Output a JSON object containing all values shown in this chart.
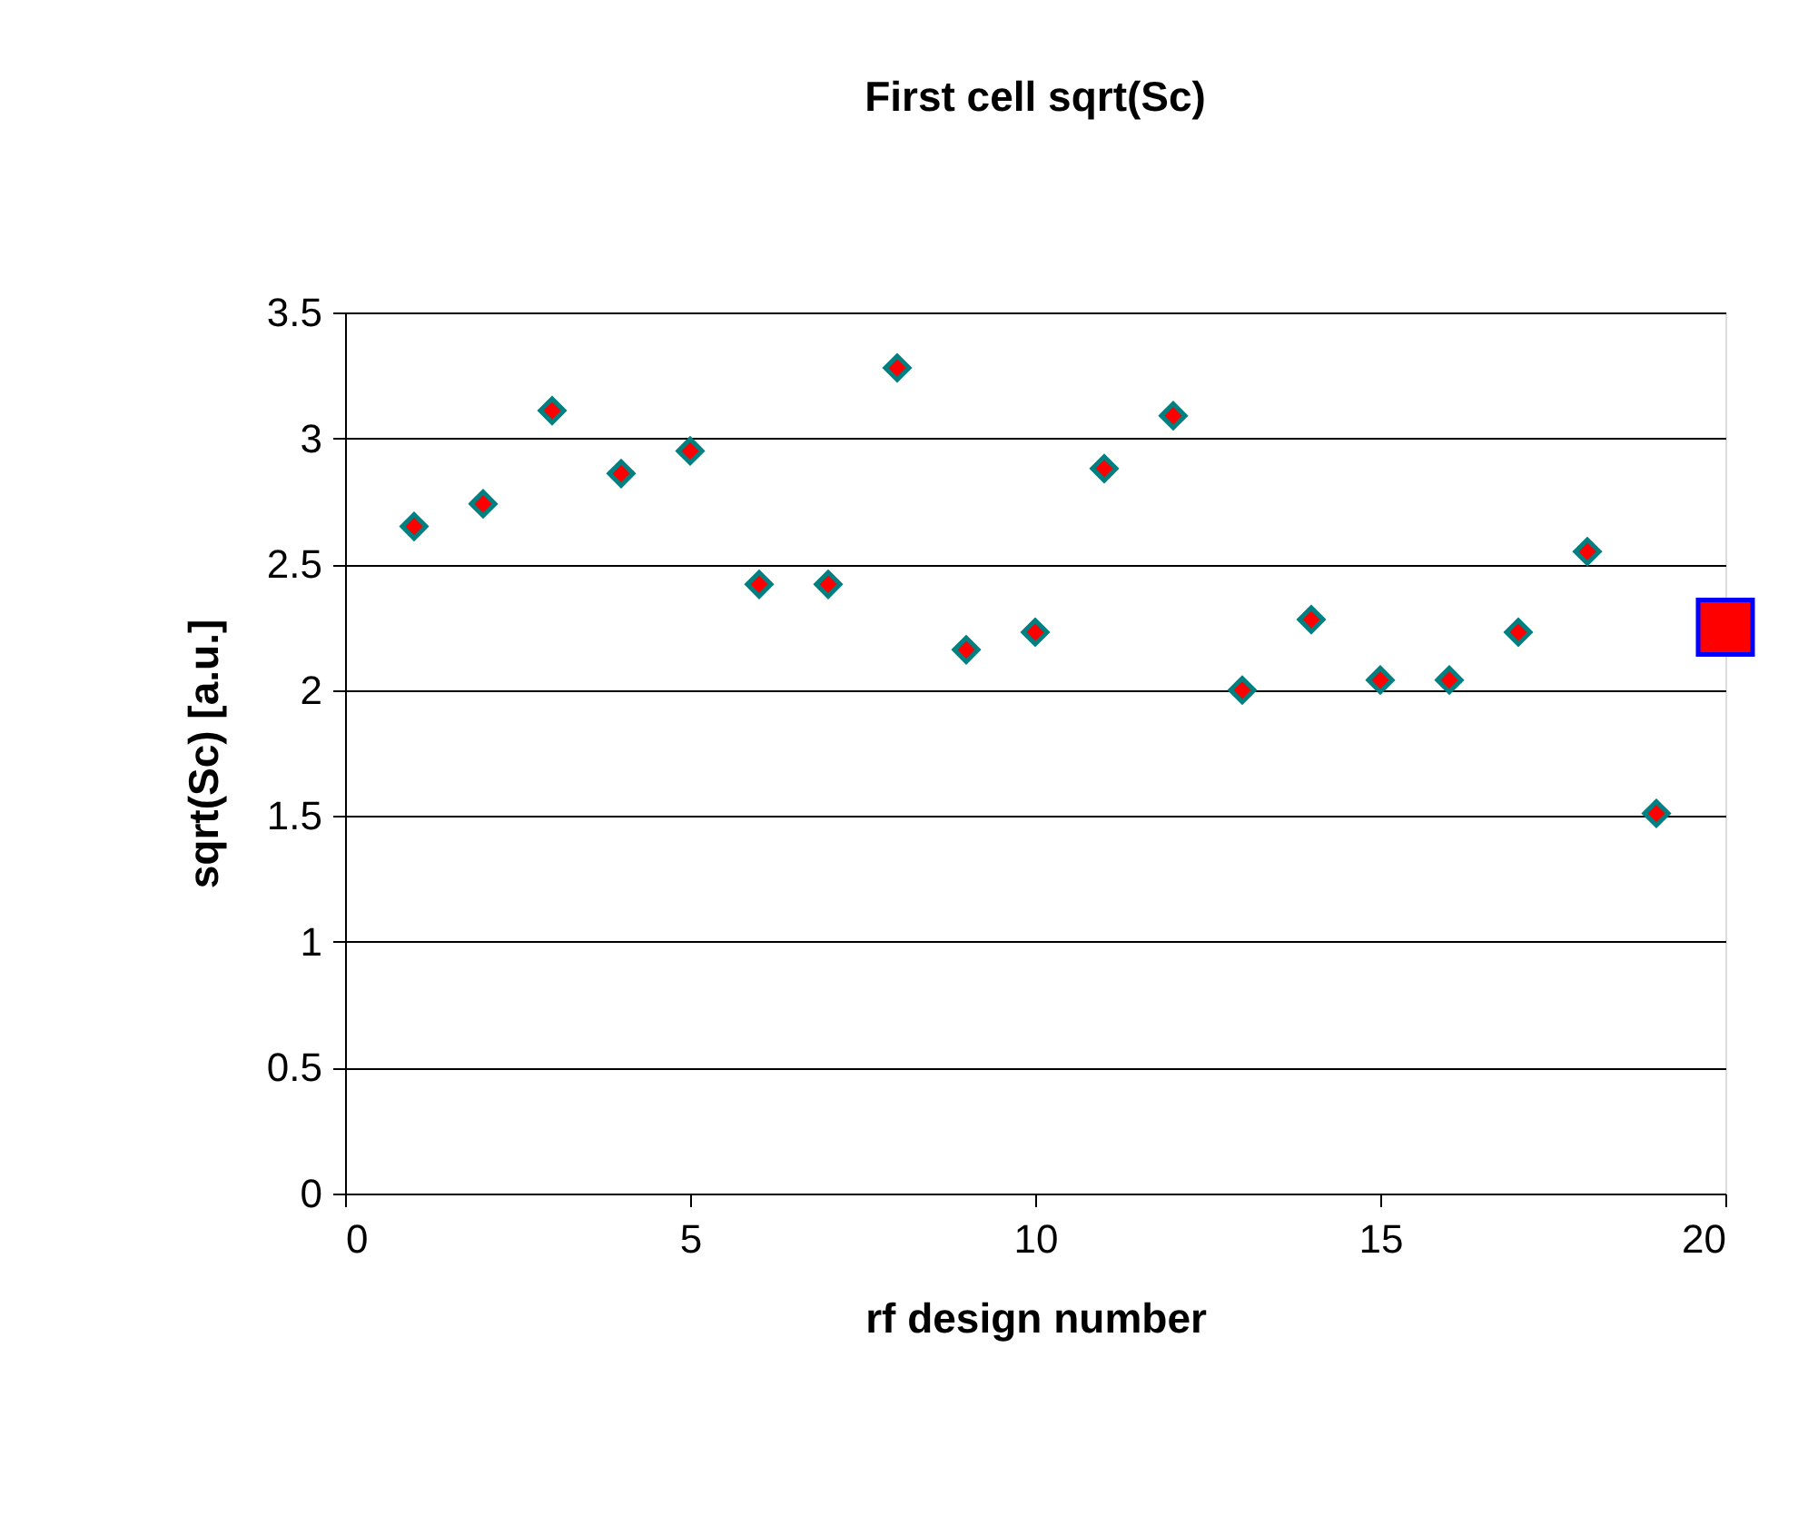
{
  "chart_data": {
    "type": "scatter",
    "title": "First cell sqrt(Sc)",
    "xlabel": "rf design number",
    "ylabel": "sqrt(Sc) [a.u.]",
    "xlim": [
      0,
      20
    ],
    "xticks": [
      0,
      5,
      10,
      15,
      20
    ],
    "ylim": [
      0,
      3.5
    ],
    "yticks": [
      0,
      0.5,
      1,
      1.5,
      2,
      2.5,
      3,
      3.5
    ],
    "grid": "y",
    "series": [
      {
        "color": "#ff0000",
        "marker": "diamond",
        "x": [
          1,
          2,
          3,
          4,
          5,
          6,
          7,
          8,
          9,
          10,
          11,
          12,
          13,
          14,
          15,
          16,
          17,
          18,
          19
        ],
        "values": [
          2.65,
          2.74,
          3.11,
          2.86,
          2.95,
          2.42,
          2.42,
          3.28,
          2.16,
          2.23,
          2.88,
          3.09,
          2.0,
          2.28,
          2.04,
          2.04,
          2.23,
          2.55,
          1.51
        ]
      },
      {
        "color": "#ff0000",
        "marker": "square",
        "x": [
          20
        ],
        "values": [
          2.25
        ]
      }
    ]
  }
}
